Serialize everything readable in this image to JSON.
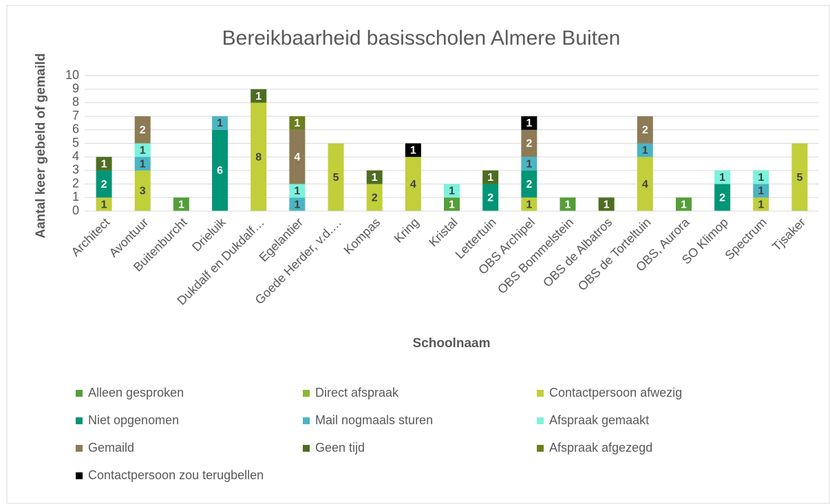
{
  "chart_data": {
    "type": "stacked_bar",
    "title": "Bereikbaarheid basisscholen Almere Buiten",
    "x_label": "Schoolnaam",
    "y_label": "Aantal keer gebeld of gemaild",
    "categories": [
      "Architect",
      "Avontuur",
      "Buitenburcht",
      "Drieluik",
      "Dukdalf en Dukdalf…",
      "Egelantier",
      "Goede Herder, v.d.…",
      "Kompas",
      "Kring",
      "Kristal",
      "Lettertuin",
      "OBS Archipel",
      "OBS Bommelstein",
      "OBS de Albatros",
      "OBS de Torteltuin",
      "OBS, Aurora",
      "SO Klimop",
      "Spectrum",
      "Tjsaker"
    ],
    "series": [
      {
        "name": "Alleen gesproken",
        "color": "#549e39",
        "values": [
          null,
          null,
          1,
          null,
          null,
          null,
          null,
          null,
          null,
          1,
          null,
          null,
          1,
          null,
          null,
          1,
          null,
          null,
          null
        ]
      },
      {
        "name": "Direct afspraak",
        "color": "#8ab833",
        "values": [
          null,
          null,
          null,
          null,
          null,
          null,
          null,
          null,
          null,
          null,
          null,
          null,
          null,
          null,
          null,
          null,
          null,
          null,
          null
        ]
      },
      {
        "name": "Contactpersoon afwezig",
        "color": "#c0cf3a",
        "values": [
          1,
          3,
          null,
          null,
          8,
          null,
          5,
          2,
          4,
          null,
          null,
          1,
          null,
          null,
          4,
          null,
          null,
          1,
          5
        ]
      },
      {
        "name": "Niet opgenomen",
        "color": "#029676",
        "values": [
          2,
          null,
          null,
          6,
          null,
          null,
          null,
          null,
          null,
          null,
          2,
          2,
          null,
          null,
          null,
          null,
          2,
          null,
          null
        ]
      },
      {
        "name": "Mail nogmaals sturen",
        "color": "#4ab5c4",
        "values": [
          null,
          1,
          null,
          1,
          null,
          1,
          null,
          null,
          null,
          null,
          null,
          1,
          null,
          null,
          1,
          null,
          null,
          1,
          null
        ]
      },
      {
        "name": "Afspraak gemaakt",
        "color": "#7cf2dc",
        "values": [
          null,
          1,
          null,
          null,
          null,
          1,
          null,
          null,
          null,
          1,
          null,
          null,
          null,
          null,
          null,
          null,
          1,
          1,
          null
        ]
      },
      {
        "name": "Gemaild",
        "color": "#8d7b55",
        "values": [
          null,
          2,
          null,
          null,
          null,
          4,
          null,
          null,
          null,
          null,
          null,
          2,
          null,
          null,
          2,
          null,
          null,
          null,
          null
        ]
      },
      {
        "name": "Geen tijd",
        "color": "#4e6d22",
        "values": [
          1,
          null,
          null,
          null,
          1,
          null,
          null,
          1,
          null,
          null,
          1,
          null,
          null,
          1,
          null,
          null,
          null,
          null,
          null
        ]
      },
      {
        "name": "Afspraak afgezegd",
        "color": "#6b7f1e",
        "values": [
          null,
          null,
          null,
          null,
          null,
          1,
          null,
          null,
          null,
          null,
          null,
          null,
          null,
          null,
          null,
          null,
          null,
          null,
          null
        ]
      },
      {
        "name": "Contactpersoon zou terugbellen",
        "color": "#000000",
        "values": [
          null,
          null,
          null,
          null,
          null,
          null,
          null,
          null,
          1,
          null,
          null,
          1,
          null,
          null,
          null,
          null,
          null,
          null,
          null
        ]
      }
    ],
    "ylim": [
      0,
      10
    ],
    "yticks": [
      0,
      1,
      2,
      3,
      4,
      5,
      6,
      7,
      8,
      9,
      10
    ],
    "grid": true,
    "legend": "bottom"
  }
}
